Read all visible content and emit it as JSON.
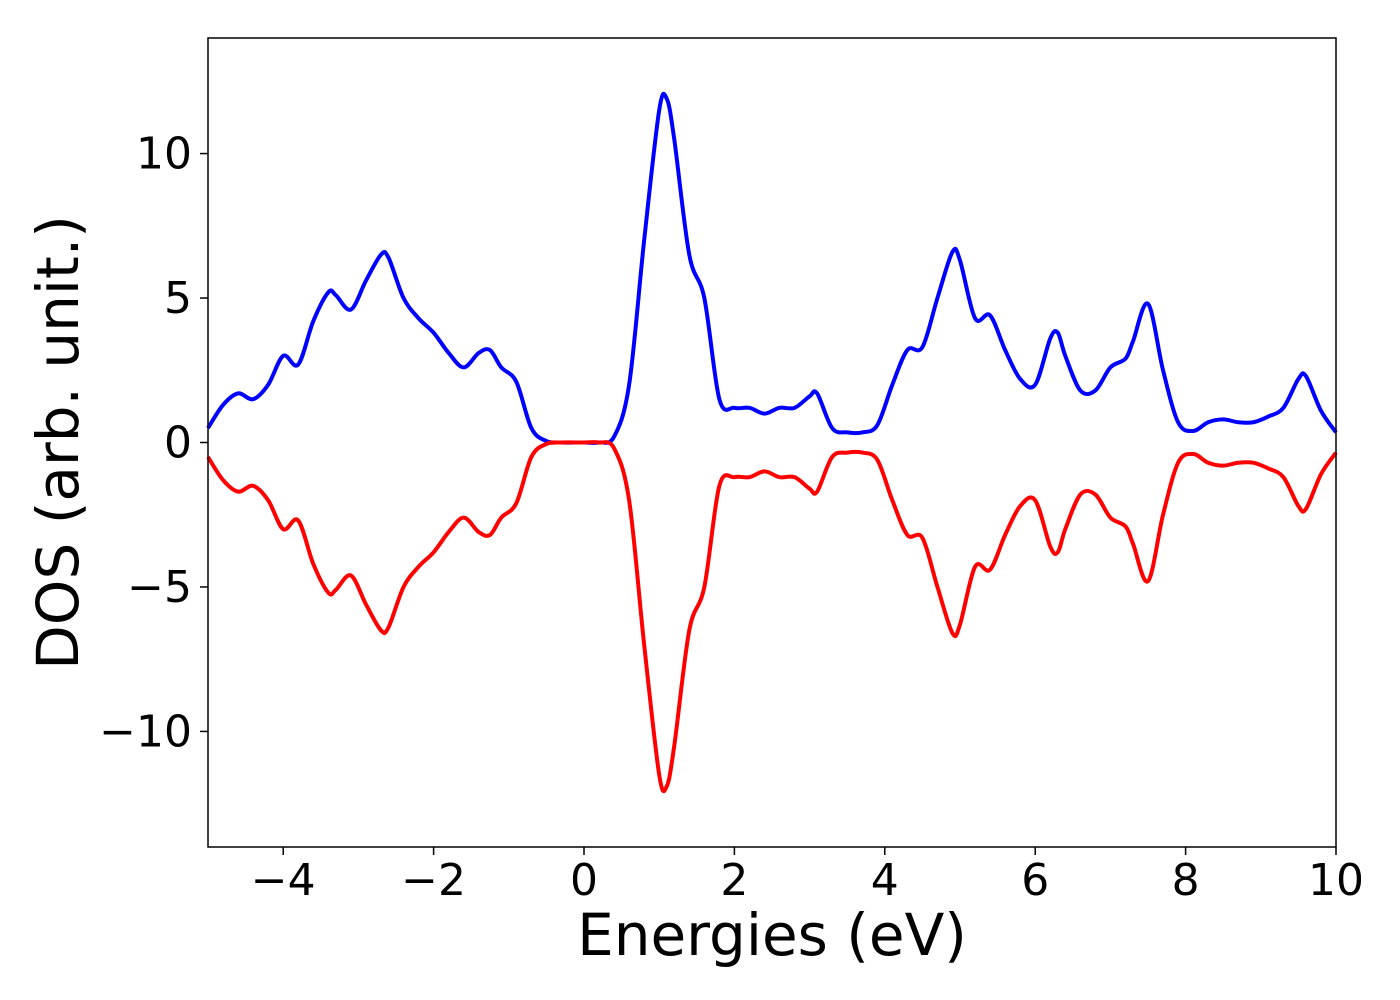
{
  "chart_data": {
    "type": "line",
    "title": "",
    "xlabel": "Energies (eV)",
    "ylabel": "DOS (arb. unit.)",
    "xlim": [
      -5,
      10
    ],
    "ylim": [
      -14,
      14
    ],
    "x_ticks": [
      -4,
      -2,
      0,
      2,
      4,
      6,
      8,
      10
    ],
    "x_tick_labels": [
      "−4",
      "−2",
      "0",
      "2",
      "4",
      "6",
      "8",
      "10"
    ],
    "y_ticks": [
      -10,
      -5,
      0,
      5,
      10
    ],
    "y_tick_labels": [
      "−10",
      "−5",
      "0",
      "5",
      "10"
    ],
    "grid": false,
    "legend": "none",
    "series": [
      {
        "color": "#0000ff",
        "x": [
          -5.0,
          -4.8,
          -4.6,
          -4.4,
          -4.2,
          -4.0,
          -3.8,
          -3.6,
          -3.4,
          -3.3,
          -3.1,
          -2.9,
          -2.7,
          -2.6,
          -2.4,
          -2.2,
          -2.0,
          -1.8,
          -1.6,
          -1.4,
          -1.25,
          -1.1,
          -0.9,
          -0.7,
          -0.5,
          -0.3,
          0.0,
          0.2,
          0.4,
          0.6,
          0.8,
          1.0,
          1.1,
          1.2,
          1.4,
          1.6,
          1.8,
          2.0,
          2.2,
          2.4,
          2.6,
          2.8,
          3.0,
          3.1,
          3.3,
          3.5,
          3.7,
          3.9,
          4.1,
          4.3,
          4.5,
          4.7,
          4.9,
          5.0,
          5.2,
          5.4,
          5.6,
          5.8,
          6.0,
          6.2,
          6.3,
          6.4,
          6.6,
          6.8,
          7.0,
          7.2,
          7.3,
          7.5,
          7.7,
          7.9,
          8.1,
          8.3,
          8.5,
          8.7,
          8.9,
          9.1,
          9.3,
          9.5,
          9.6,
          9.8,
          10.0
        ],
        "y": [
          0.5,
          1.3,
          1.7,
          1.5,
          2.0,
          3.0,
          2.7,
          4.2,
          5.2,
          5.1,
          4.6,
          5.6,
          6.5,
          6.4,
          5.0,
          4.3,
          3.8,
          3.1,
          2.6,
          3.1,
          3.2,
          2.6,
          2.1,
          0.5,
          0.05,
          0.0,
          0.0,
          0.0,
          0.2,
          2.0,
          7.0,
          11.5,
          11.9,
          10.5,
          6.5,
          5.0,
          1.5,
          1.2,
          1.2,
          1.0,
          1.2,
          1.2,
          1.6,
          1.7,
          0.5,
          0.35,
          0.35,
          0.6,
          2.0,
          3.2,
          3.3,
          5.0,
          6.6,
          6.3,
          4.3,
          4.4,
          3.2,
          2.2,
          2.0,
          3.6,
          3.8,
          3.0,
          1.8,
          1.8,
          2.6,
          2.9,
          3.5,
          4.8,
          2.5,
          0.7,
          0.4,
          0.7,
          0.8,
          0.7,
          0.7,
          0.9,
          1.2,
          2.2,
          2.3,
          1.1,
          0.35
        ]
      },
      {
        "color": "#ff0000",
        "x": [
          -5.0,
          -4.8,
          -4.6,
          -4.4,
          -4.2,
          -4.0,
          -3.8,
          -3.6,
          -3.4,
          -3.3,
          -3.1,
          -2.9,
          -2.7,
          -2.6,
          -2.4,
          -2.2,
          -2.0,
          -1.8,
          -1.6,
          -1.4,
          -1.25,
          -1.1,
          -0.9,
          -0.7,
          -0.5,
          -0.3,
          0.0,
          0.2,
          0.4,
          0.6,
          0.8,
          1.0,
          1.1,
          1.2,
          1.4,
          1.6,
          1.8,
          2.0,
          2.2,
          2.4,
          2.6,
          2.8,
          3.0,
          3.1,
          3.3,
          3.5,
          3.7,
          3.9,
          4.1,
          4.3,
          4.5,
          4.7,
          4.9,
          5.0,
          5.2,
          5.4,
          5.6,
          5.8,
          6.0,
          6.2,
          6.3,
          6.4,
          6.6,
          6.8,
          7.0,
          7.2,
          7.3,
          7.5,
          7.7,
          7.9,
          8.1,
          8.3,
          8.5,
          8.7,
          8.9,
          9.1,
          9.3,
          9.5,
          9.6,
          9.8,
          10.0
        ],
        "y": [
          -0.5,
          -1.3,
          -1.7,
          -1.5,
          -2.0,
          -3.0,
          -2.7,
          -4.2,
          -5.2,
          -5.1,
          -4.6,
          -5.6,
          -6.5,
          -6.4,
          -5.0,
          -4.3,
          -3.8,
          -3.1,
          -2.6,
          -3.1,
          -3.2,
          -2.6,
          -2.1,
          -0.5,
          -0.05,
          0.0,
          0.0,
          0.0,
          -0.2,
          -2.0,
          -7.0,
          -11.5,
          -11.9,
          -10.5,
          -6.5,
          -5.0,
          -1.5,
          -1.2,
          -1.2,
          -1.0,
          -1.2,
          -1.2,
          -1.6,
          -1.7,
          -0.5,
          -0.35,
          -0.35,
          -0.6,
          -2.0,
          -3.2,
          -3.3,
          -5.0,
          -6.6,
          -6.3,
          -4.3,
          -4.4,
          -3.2,
          -2.2,
          -2.0,
          -3.6,
          -3.8,
          -3.0,
          -1.8,
          -1.8,
          -2.6,
          -2.9,
          -3.5,
          -4.8,
          -2.5,
          -0.7,
          -0.4,
          -0.7,
          -0.8,
          -0.7,
          -0.7,
          -0.9,
          -1.2,
          -2.2,
          -2.3,
          -1.1,
          -0.35
        ]
      }
    ]
  }
}
